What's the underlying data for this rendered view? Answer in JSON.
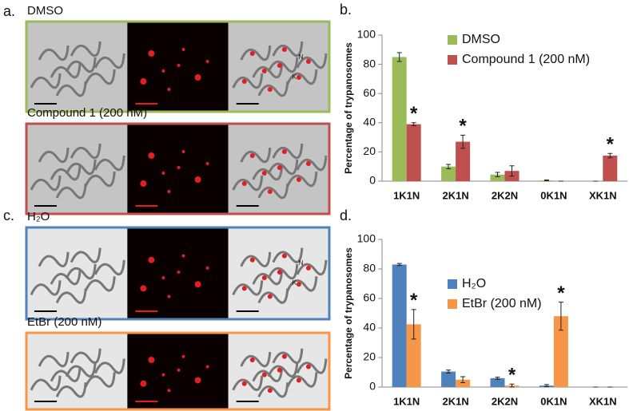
{
  "figure": {
    "panels": [
      {
        "letter": "a.",
        "rows": [
          {
            "label": "DMSO",
            "color": "#9bbb59"
          },
          {
            "label": "Compound 1 (200 nM)",
            "color": "#c0504d"
          }
        ]
      },
      {
        "letter": "c.",
        "rows": [
          {
            "label": "H₂O",
            "color": "#4f81bd"
          },
          {
            "label": "EtBr (200 nM)",
            "color": "#f79646"
          }
        ]
      }
    ],
    "nucleus_label": "N",
    "kinetoplast_label": "K"
  },
  "chart_data": [
    {
      "type": "bar",
      "panel_label": "b.",
      "y_label": "Percentage of trypanosomes",
      "categories": [
        "1K1N",
        "2K1N",
        "2K2N",
        "0K1N",
        "XK1N"
      ],
      "series": [
        {
          "name": "DMSO",
          "color": "#9bbb59",
          "values": [
            85,
            10,
            4.5,
            0.5,
            0
          ],
          "errors": [
            3,
            1.5,
            1.5,
            0.3,
            0
          ]
        },
        {
          "name": "Compound 1 (200 nM)",
          "color": "#c0504d",
          "values": [
            39,
            27,
            7,
            0,
            17.5
          ],
          "errors": [
            1,
            4.5,
            3.5,
            0,
            1.5
          ]
        }
      ],
      "significance": [
        "*",
        "*",
        null,
        null,
        "*"
      ],
      "ylim": [
        0,
        100
      ],
      "yticks": [
        0,
        20,
        40,
        60,
        80,
        100
      ]
    },
    {
      "type": "bar",
      "panel_label": "d.",
      "y_label": "Percentage of trypanosomes",
      "categories": [
        "1K1N",
        "2K1N",
        "2K2N",
        "0K1N",
        "XK1N"
      ],
      "series": [
        {
          "name": "H₂O",
          "color": "#4f81bd",
          "values": [
            83,
            10.5,
            6,
            1,
            0
          ],
          "errors": [
            0.7,
            1,
            0.7,
            0.7,
            0
          ]
        },
        {
          "name": "EtBr (200 nM)",
          "color": "#f79646",
          "values": [
            42.5,
            5,
            1,
            48,
            0
          ],
          "errors": [
            10,
            2,
            1,
            9.5,
            0
          ]
        }
      ],
      "significance": [
        "*",
        null,
        "*",
        "*",
        null
      ],
      "ylim": [
        0,
        100
      ],
      "yticks": [
        0,
        20,
        40,
        60,
        80,
        100
      ]
    }
  ]
}
